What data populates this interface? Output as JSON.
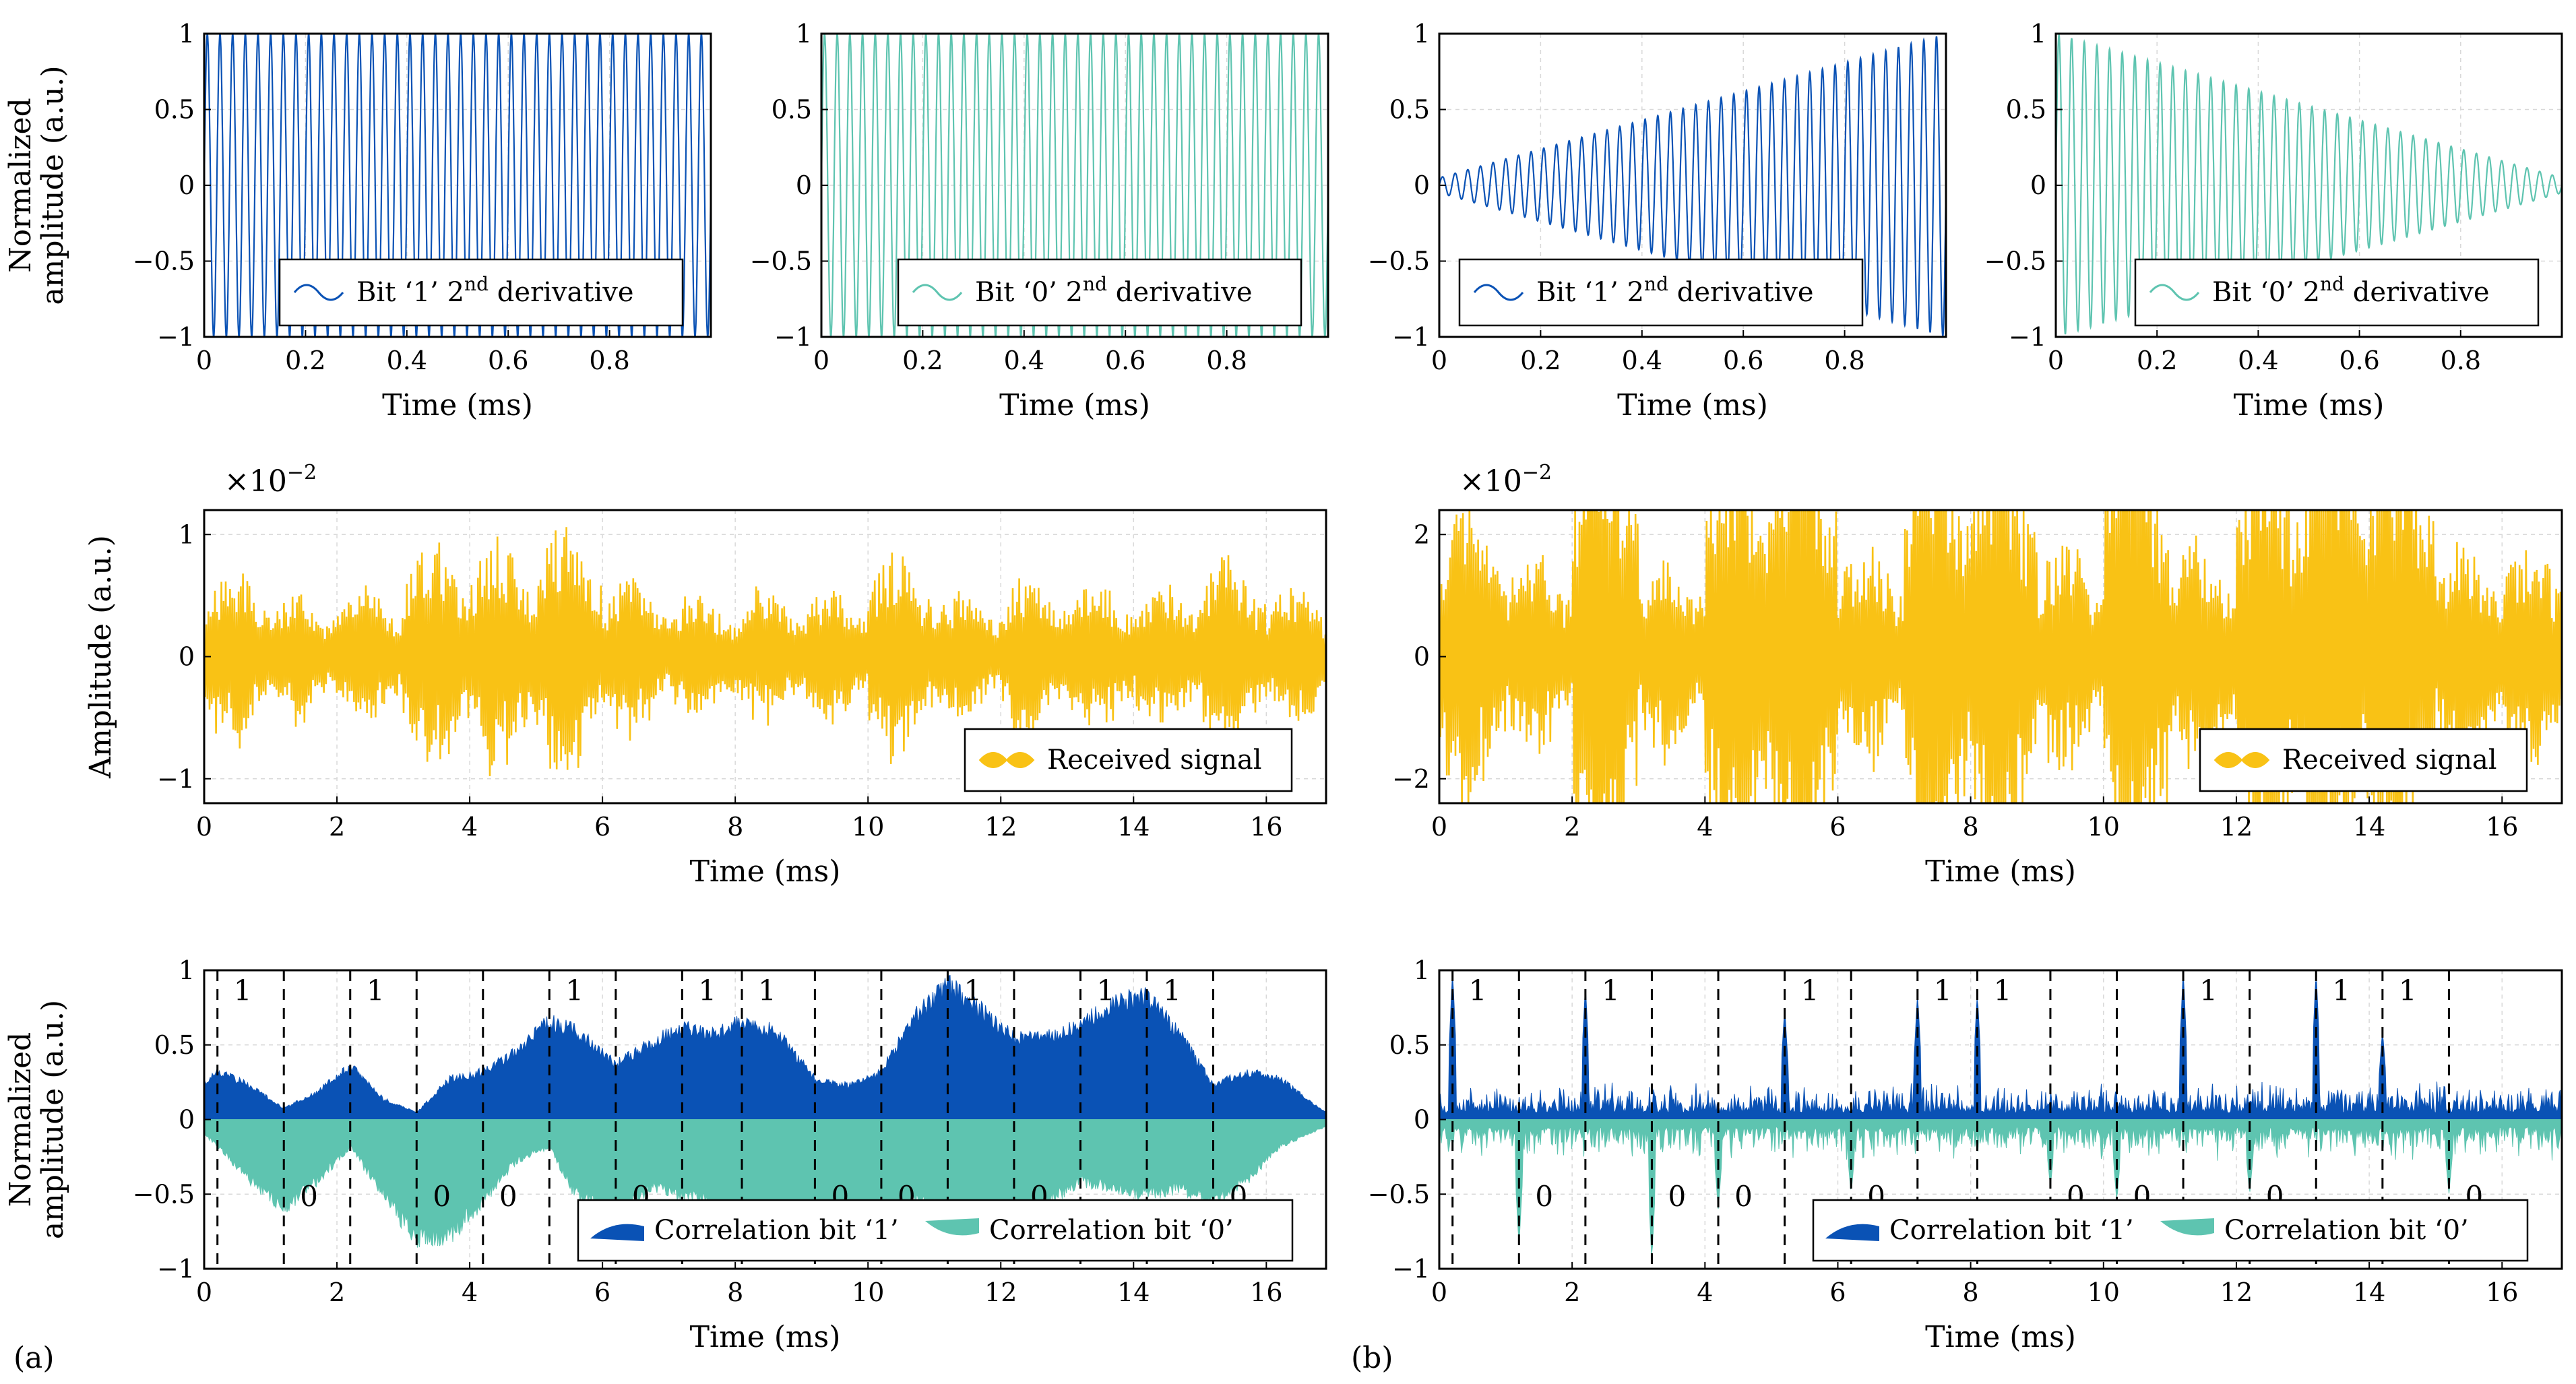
{
  "colors": {
    "bit1": "#0a52b5",
    "bit0": "#5ec4b0",
    "received": "#f9c215",
    "axis": "#000000",
    "grid": "#d9d9d9"
  },
  "chart_data": [
    {
      "id": "p1",
      "type": "line",
      "signal": "chirp",
      "xlim": [
        0,
        1
      ],
      "ylim": [
        -1,
        1
      ],
      "xticks": [
        0,
        0.2,
        0.4,
        0.6,
        0.8
      ],
      "yticks": [
        -1,
        -0.5,
        0,
        0.5,
        1
      ],
      "xlabel": "Time (ms)",
      "ylabel": [
        "Normalized",
        "amplitude (a.u.)"
      ],
      "series": [
        {
          "name": "Bit ‘1’ 2nd derivative",
          "color_key": "bit1",
          "cycles": 40,
          "envelope": "constant",
          "amplitude": 1
        }
      ],
      "legend": {
        "text": "Bit ‘1’ 2",
        "sup": "nd",
        "tail": " derivative",
        "position": "bottom-right"
      }
    },
    {
      "id": "p2",
      "type": "line",
      "signal": "chirp",
      "xlim": [
        0,
        1
      ],
      "ylim": [
        -1,
        1
      ],
      "xticks": [
        0,
        0.2,
        0.4,
        0.6,
        0.8
      ],
      "yticks": [
        -1,
        -0.5,
        0,
        0.5,
        1
      ],
      "xlabel": "Time (ms)",
      "ylabel": null,
      "series": [
        {
          "name": "Bit ‘0’ 2nd derivative",
          "color_key": "bit0",
          "cycles": 40,
          "envelope": "constant",
          "amplitude": 1
        }
      ],
      "legend": {
        "text": "Bit ‘0’ 2",
        "sup": "nd",
        "tail": " derivative",
        "position": "bottom-right"
      }
    },
    {
      "id": "p3",
      "type": "line",
      "signal": "chirp",
      "xlim": [
        0,
        1
      ],
      "ylim": [
        -1,
        1
      ],
      "xticks": [
        0,
        0.2,
        0.4,
        0.6,
        0.8
      ],
      "yticks": [
        -1,
        -0.5,
        0,
        0.5,
        1
      ],
      "xlabel": "Time (ms)",
      "ylabel": null,
      "series": [
        {
          "name": "Bit ‘1’ 2nd derivative",
          "color_key": "bit1",
          "cycles": 40,
          "envelope": "rising",
          "amplitude_start": 0.05,
          "amplitude_end": 1
        }
      ],
      "legend": {
        "text": "Bit ‘1’ 2",
        "sup": "nd",
        "tail": " derivative",
        "position": "bottom-right"
      }
    },
    {
      "id": "p4",
      "type": "line",
      "signal": "chirp",
      "xlim": [
        0,
        1
      ],
      "ylim": [
        -1,
        1
      ],
      "xticks": [
        0,
        0.2,
        0.4,
        0.6,
        0.8
      ],
      "yticks": [
        -1,
        -0.5,
        0,
        0.5,
        1
      ],
      "xlabel": "Time (ms)",
      "ylabel": null,
      "series": [
        {
          "name": "Bit ‘0’ 2nd derivative",
          "color_key": "bit0",
          "cycles": 40,
          "envelope": "falling",
          "amplitude_start": 1,
          "amplitude_end": 0.05
        }
      ],
      "legend": {
        "text": "Bit ‘0’ 2",
        "sup": "nd",
        "tail": " derivative",
        "position": "bottom-right"
      }
    },
    {
      "id": "p5",
      "type": "area",
      "signal": "received",
      "xlim": [
        0,
        16.9
      ],
      "ylim": [
        -1.2,
        1.2
      ],
      "xticks": [
        0,
        2,
        4,
        6,
        8,
        10,
        12,
        14,
        16
      ],
      "yticks": [
        -1,
        0,
        1
      ],
      "xlabel": "Time (ms)",
      "ylabel": [
        "Amplitude (a.u.)"
      ],
      "multiplier": "×10",
      "multiplier_exp": "−2",
      "series": [
        {
          "name": "Received signal",
          "color_key": "received",
          "segment_peaks": [
            0.75,
            0.55,
            0.6,
            1.05,
            1.0,
            1.1,
            0.65,
            0.55,
            0.6,
            0.58,
            0.9,
            0.55,
            0.7,
            0.65,
            0.65,
            0.85,
            0.6
          ]
        }
      ],
      "legend": {
        "text": "Received signal",
        "position": "bottom-right"
      }
    },
    {
      "id": "p6",
      "type": "area",
      "signal": "received",
      "xlim": [
        0,
        16.9
      ],
      "ylim": [
        -2.4,
        2.4
      ],
      "xticks": [
        0,
        2,
        4,
        6,
        8,
        10,
        12,
        14,
        16
      ],
      "yticks": [
        -2,
        0,
        2
      ],
      "xlabel": "Time (ms)",
      "ylabel": null,
      "multiplier": "×10",
      "multiplier_exp": "−2",
      "series": [
        {
          "name": "Received signal",
          "color_key": "received",
          "segment_peaks": [
            1.3,
            0.9,
            2.3,
            0.9,
            2.0,
            2.3,
            1.0,
            2.1,
            2.0,
            1.0,
            2.3,
            1.0,
            2.0,
            2.3,
            2.1,
            1.0,
            1.0
          ]
        }
      ],
      "legend": {
        "text": "Received signal",
        "position": "bottom-right"
      }
    },
    {
      "id": "p7",
      "type": "area",
      "signal": "correlation",
      "xlim": [
        0,
        16.9
      ],
      "ylim": [
        -1,
        1
      ],
      "xticks": [
        0,
        2,
        4,
        6,
        8,
        10,
        12,
        14,
        16
      ],
      "yticks": [
        -1,
        -0.5,
        0,
        0.5,
        1
      ],
      "xlabel": "Time (ms)",
      "ylabel": [
        "Normalized",
        "amplitude (a.u.)"
      ],
      "panel_label": "(a)",
      "bit_boundaries": [
        0.2,
        1.2,
        2.2,
        3.2,
        4.2,
        5.2,
        6.2,
        7.2,
        8.1,
        9.2,
        10.2,
        11.2,
        12.2,
        13.2,
        14.2,
        15.2
      ],
      "bits": [
        "1",
        "0",
        "1",
        "0",
        "0",
        "1",
        "0",
        "1",
        "1",
        "0",
        "0",
        "1",
        "0",
        "1",
        "1",
        "0"
      ],
      "series": [
        {
          "name": "Correlation bit ‘1’",
          "color_key": "bit1",
          "style": "smooth",
          "env_x": [
            0,
            0.2,
            0.7,
            1.2,
            1.7,
            2.2,
            2.7,
            3.2,
            3.7,
            4.2,
            4.7,
            5.2,
            5.6,
            6.2,
            6.7,
            7.2,
            7.7,
            8.1,
            8.6,
            9.2,
            9.7,
            10.2,
            10.7,
            11.2,
            11.7,
            12.2,
            12.7,
            13.2,
            13.7,
            14.2,
            14.7,
            15.2,
            15.7,
            16.2,
            16.9
          ],
          "env_y": [
            0.25,
            0.35,
            0.25,
            0.08,
            0.2,
            0.4,
            0.15,
            0.05,
            0.3,
            0.35,
            0.5,
            0.72,
            0.65,
            0.4,
            0.55,
            0.68,
            0.62,
            0.72,
            0.65,
            0.3,
            0.25,
            0.35,
            0.75,
            0.98,
            0.8,
            0.6,
            0.6,
            0.7,
            0.85,
            0.9,
            0.62,
            0.25,
            0.35,
            0.3,
            0.05
          ]
        },
        {
          "name": "Correlation bit ‘0’",
          "color_key": "bit0",
          "style": "smooth",
          "env_x": [
            0,
            0.2,
            0.7,
            1.2,
            1.7,
            2.2,
            2.7,
            3.2,
            3.7,
            4.2,
            4.7,
            5.2,
            5.6,
            6.2,
            6.7,
            7.2,
            7.7,
            8.1,
            8.6,
            9.2,
            9.7,
            10.2,
            10.7,
            11.2,
            11.7,
            12.2,
            12.7,
            13.2,
            13.7,
            14.2,
            14.7,
            15.2,
            15.7,
            16.2,
            16.9
          ],
          "env_y": [
            0.1,
            0.2,
            0.45,
            0.65,
            0.45,
            0.2,
            0.55,
            0.88,
            0.85,
            0.6,
            0.3,
            0.2,
            0.55,
            0.7,
            0.5,
            0.55,
            0.6,
            0.7,
            0.85,
            0.95,
            0.95,
            0.85,
            0.6,
            0.6,
            0.8,
            0.95,
            0.6,
            0.45,
            0.5,
            0.55,
            0.5,
            0.6,
            0.45,
            0.2,
            0.05
          ]
        }
      ],
      "legend": {
        "items": [
          "Correlation bit ‘1’",
          "Correlation bit ‘0’"
        ],
        "position": "bottom-right"
      }
    },
    {
      "id": "p8",
      "type": "area",
      "signal": "correlation",
      "xlim": [
        0,
        16.9
      ],
      "ylim": [
        -1,
        1
      ],
      "xticks": [
        0,
        2,
        4,
        6,
        8,
        10,
        12,
        14,
        16
      ],
      "yticks": [
        -1,
        -0.5,
        0,
        0.5,
        1
      ],
      "xlabel": "Time (ms)",
      "ylabel": null,
      "panel_label": "(b)",
      "bit_boundaries": [
        0.2,
        1.2,
        2.2,
        3.2,
        4.2,
        5.2,
        6.2,
        7.2,
        8.1,
        9.2,
        10.2,
        11.2,
        12.2,
        13.2,
        14.2,
        15.2
      ],
      "bits": [
        "1",
        "0",
        "1",
        "0",
        "0",
        "1",
        "0",
        "1",
        "1",
        "0",
        "0",
        "1",
        "0",
        "1",
        "1",
        "0"
      ],
      "series": [
        {
          "name": "Correlation bit ‘1’",
          "color_key": "bit1",
          "style": "spiky",
          "base": 0.18,
          "peaks_x": [
            0.2,
            2.2,
            5.2,
            7.2,
            8.1,
            11.2,
            13.2,
            14.2
          ],
          "peaks_y": [
            1.0,
            0.9,
            0.75,
            0.85,
            0.85,
            1.0,
            1.0,
            0.6
          ]
        },
        {
          "name": "Correlation bit ‘0’",
          "color_key": "bit0",
          "style": "spiky",
          "base": 0.2,
          "peaks_x": [
            1.2,
            3.2,
            4.2,
            6.2,
            9.2,
            10.2,
            12.2,
            15.2
          ],
          "peaks_y": [
            0.85,
            0.95,
            0.6,
            0.5,
            0.45,
            0.55,
            0.5,
            0.5
          ]
        }
      ],
      "legend": {
        "items": [
          "Correlation bit ‘1’",
          "Correlation bit ‘0’"
        ],
        "position": "bottom-right"
      }
    }
  ]
}
